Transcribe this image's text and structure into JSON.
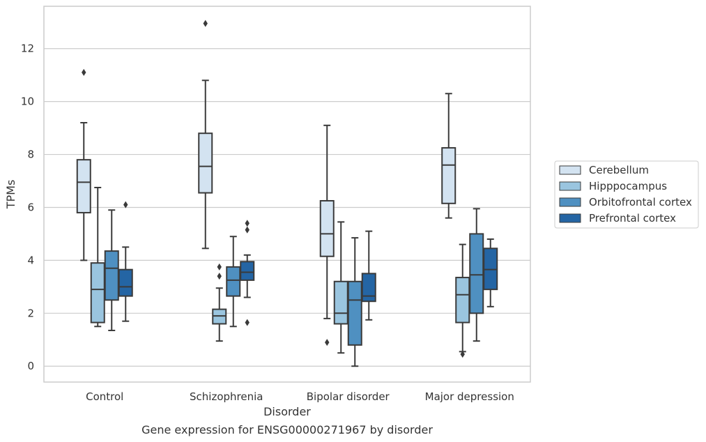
{
  "chart_data": {
    "type": "box",
    "caption": "Gene expression for ENSG00000271967 by disorder",
    "xlabel": "Disorder",
    "ylabel": "TPMs",
    "ylim": [
      -0.6,
      13.6
    ],
    "yticks": [
      0,
      2,
      4,
      6,
      8,
      10,
      12
    ],
    "grid": true,
    "legend_position": "right",
    "categories": [
      "Control",
      "Schizophrenia",
      "Bipolar disorder",
      "Major depression"
    ],
    "series": [
      {
        "name": "Cerebellum",
        "color": "#d3e3f1",
        "boxes": [
          {
            "whislo": 4.0,
            "q1": 5.8,
            "med": 6.95,
            "q3": 7.8,
            "whishi": 9.2,
            "fliers": [
              11.1
            ]
          },
          {
            "whislo": 4.45,
            "q1": 6.55,
            "med": 7.55,
            "q3": 8.8,
            "whishi": 10.8,
            "fliers": [
              12.95
            ]
          },
          {
            "whislo": 1.8,
            "q1": 4.15,
            "med": 5.0,
            "q3": 6.25,
            "whishi": 9.1,
            "fliers": [
              0.9
            ]
          },
          {
            "whislo": 5.6,
            "q1": 6.15,
            "med": 7.6,
            "q3": 8.25,
            "whishi": 10.3,
            "fliers": []
          }
        ]
      },
      {
        "name": "Hipppocampus",
        "color": "#9ac5df",
        "boxes": [
          {
            "whislo": 1.5,
            "q1": 1.65,
            "med": 2.9,
            "q3": 3.9,
            "whishi": 6.75,
            "fliers": []
          },
          {
            "whislo": 0.95,
            "q1": 1.6,
            "med": 1.9,
            "q3": 2.15,
            "whishi": 2.95,
            "fliers": [
              3.4,
              3.75
            ]
          },
          {
            "whislo": 0.5,
            "q1": 1.6,
            "med": 2.0,
            "q3": 3.2,
            "whishi": 5.45,
            "fliers": []
          },
          {
            "whislo": 0.55,
            "q1": 1.65,
            "med": 2.7,
            "q3": 3.35,
            "whishi": 4.6,
            "fliers": [
              0.45
            ]
          }
        ]
      },
      {
        "name": "Orbitofrontal cortex",
        "color": "#4f90c1",
        "boxes": [
          {
            "whislo": 1.35,
            "q1": 2.5,
            "med": 3.7,
            "q3": 4.35,
            "whishi": 5.9,
            "fliers": []
          },
          {
            "whislo": 1.5,
            "q1": 2.65,
            "med": 3.25,
            "q3": 3.75,
            "whishi": 4.9,
            "fliers": []
          },
          {
            "whislo": 0.0,
            "q1": 0.8,
            "med": 2.5,
            "q3": 3.2,
            "whishi": 4.85,
            "fliers": []
          },
          {
            "whislo": 0.95,
            "q1": 2.0,
            "med": 3.45,
            "q3": 5.0,
            "whishi": 5.95,
            "fliers": []
          }
        ]
      },
      {
        "name": "Prefrontal cortex",
        "color": "#2465a4",
        "boxes": [
          {
            "whislo": 1.7,
            "q1": 2.65,
            "med": 3.0,
            "q3": 3.65,
            "whishi": 4.5,
            "fliers": [
              6.1
            ]
          },
          {
            "whislo": 2.6,
            "q1": 3.25,
            "med": 3.55,
            "q3": 3.95,
            "whishi": 4.2,
            "fliers": [
              5.15,
              5.4,
              1.65
            ]
          },
          {
            "whislo": 1.75,
            "q1": 2.45,
            "med": 2.65,
            "q3": 3.5,
            "whishi": 5.1,
            "fliers": []
          },
          {
            "whislo": 2.25,
            "q1": 2.9,
            "med": 3.65,
            "q3": 4.45,
            "whishi": 4.8,
            "fliers": []
          }
        ]
      }
    ]
  }
}
